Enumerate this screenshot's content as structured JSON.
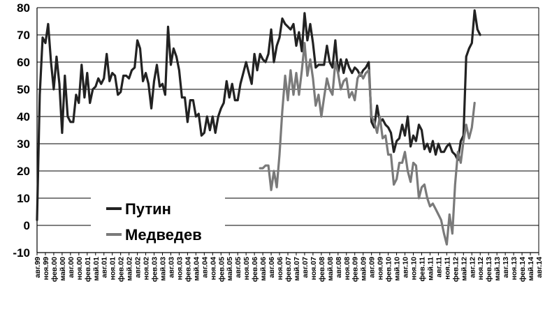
{
  "chart_data": {
    "type": "line",
    "title": "",
    "xlabel": "",
    "ylabel": "",
    "ylim": [
      -10,
      80
    ],
    "yticks": [
      "-10",
      "0",
      "10",
      "20",
      "30",
      "40",
      "50",
      "60",
      "70",
      "80"
    ],
    "grid": "horizontal",
    "legend_position": "lower-left",
    "x_tick_labels": [
      "авг.99",
      "ноя.99",
      "фев.00",
      "май.00",
      "авг.00",
      "ноя.00",
      "фев.01",
      "май.01",
      "авг.01",
      "ноя.01",
      "фев.02",
      "май.02",
      "авг.02",
      "ноя.02",
      "фев.03",
      "май.03",
      "авг.03",
      "ноя.03",
      "фев.04",
      "май.04",
      "авг.04",
      "ноя.04",
      "фев.05",
      "май.05",
      "авг.05",
      "ноя.05",
      "фев.06",
      "май.06",
      "авг.06",
      "ноя.06",
      "фев.07",
      "май.07",
      "авг.07",
      "ноя.07",
      "фев.08",
      "май.08",
      "авг.08",
      "ноя.08",
      "фев.09",
      "май.09",
      "авг.09",
      "ноя.09",
      "фев.10",
      "май.10",
      "авг.10",
      "ноя.10",
      "фев.11",
      "май.11",
      "авг.11",
      "ноя.11",
      "фев.12",
      "май.12",
      "авг.12",
      "ноя.12",
      "фев.13",
      "май.13",
      "авг.13",
      "ноя.13",
      "фев.14",
      "май.14",
      "авг.14"
    ],
    "series": [
      {
        "name": "Путин",
        "color": "#222222",
        "points": [
          [
            0,
            2
          ],
          [
            0.33,
            48
          ],
          [
            0.67,
            69
          ],
          [
            1,
            67
          ],
          [
            1.33,
            74
          ],
          [
            1.67,
            60
          ],
          [
            2,
            50
          ],
          [
            2.33,
            62
          ],
          [
            2.67,
            52
          ],
          [
            3,
            34
          ],
          [
            3.33,
            55
          ],
          [
            3.67,
            40
          ],
          [
            4,
            38
          ],
          [
            4.33,
            38
          ],
          [
            4.67,
            48
          ],
          [
            5,
            45
          ],
          [
            5.33,
            59
          ],
          [
            5.67,
            47
          ],
          [
            6,
            56
          ],
          [
            6.33,
            45
          ],
          [
            6.67,
            50
          ],
          [
            7,
            51
          ],
          [
            7.33,
            54
          ],
          [
            7.67,
            52
          ],
          [
            8,
            54
          ],
          [
            8.33,
            63
          ],
          [
            8.67,
            53
          ],
          [
            9,
            56
          ],
          [
            9.33,
            55
          ],
          [
            9.67,
            48
          ],
          [
            10,
            49
          ],
          [
            10.33,
            55
          ],
          [
            10.67,
            55
          ],
          [
            11,
            54
          ],
          [
            11.33,
            57
          ],
          [
            11.67,
            58
          ],
          [
            12,
            68
          ],
          [
            12.33,
            65
          ],
          [
            12.67,
            53
          ],
          [
            13,
            56
          ],
          [
            13.33,
            52
          ],
          [
            13.67,
            43
          ],
          [
            14,
            53
          ],
          [
            14.33,
            59
          ],
          [
            14.67,
            51
          ],
          [
            15,
            52
          ],
          [
            15.33,
            48
          ],
          [
            15.67,
            73
          ],
          [
            16,
            59
          ],
          [
            16.33,
            65
          ],
          [
            16.67,
            62
          ],
          [
            17,
            57
          ],
          [
            17.33,
            47
          ],
          [
            17.67,
            47
          ],
          [
            18,
            38
          ],
          [
            18.33,
            46
          ],
          [
            18.67,
            46
          ],
          [
            19,
            40
          ],
          [
            19.33,
            41
          ],
          [
            19.67,
            33
          ],
          [
            20,
            34
          ],
          [
            20.33,
            40
          ],
          [
            20.67,
            35
          ],
          [
            21,
            40
          ],
          [
            21.33,
            34
          ],
          [
            21.67,
            40
          ],
          [
            22,
            43
          ],
          [
            22.33,
            45
          ],
          [
            22.67,
            53
          ],
          [
            23,
            47
          ],
          [
            23.33,
            52
          ],
          [
            23.67,
            46
          ],
          [
            24,
            46
          ],
          [
            24.33,
            52
          ],
          [
            24.67,
            56
          ],
          [
            25,
            60
          ],
          [
            25.33,
            56
          ],
          [
            25.67,
            52
          ],
          [
            26,
            63
          ],
          [
            26.33,
            57
          ],
          [
            26.67,
            63
          ],
          [
            27,
            61
          ],
          [
            27.33,
            60
          ],
          [
            27.67,
            63
          ],
          [
            28,
            72
          ],
          [
            28.33,
            60
          ],
          [
            28.67,
            66
          ],
          [
            29,
            69
          ],
          [
            29.33,
            76
          ],
          [
            29.67,
            74
          ],
          [
            30,
            73
          ],
          [
            30.33,
            72
          ],
          [
            30.67,
            74
          ],
          [
            31,
            66
          ],
          [
            31.33,
            71
          ],
          [
            31.67,
            64
          ],
          [
            32,
            78
          ],
          [
            32.33,
            68
          ],
          [
            32.67,
            74
          ],
          [
            33,
            67
          ],
          [
            33.33,
            58
          ],
          [
            33.67,
            59
          ],
          [
            34,
            59
          ],
          [
            34.33,
            59
          ],
          [
            34.67,
            66
          ],
          [
            35,
            60
          ],
          [
            35.33,
            58
          ],
          [
            35.67,
            68
          ],
          [
            36,
            56
          ],
          [
            36.33,
            61
          ],
          [
            36.67,
            56
          ],
          [
            37,
            61
          ],
          [
            37.33,
            58
          ],
          [
            37.67,
            56
          ],
          [
            38,
            58
          ],
          [
            38.33,
            57
          ],
          [
            38.67,
            55
          ],
          [
            39,
            57
          ],
          [
            39.33,
            58
          ],
          [
            39.67,
            60
          ],
          [
            40,
            38
          ],
          [
            40.33,
            36
          ],
          [
            40.67,
            44
          ],
          [
            41,
            38
          ],
          [
            41.33,
            39
          ],
          [
            41.67,
            37
          ],
          [
            42,
            36
          ],
          [
            42.33,
            34
          ],
          [
            42.67,
            27
          ],
          [
            43,
            31
          ],
          [
            43.33,
            32
          ],
          [
            43.67,
            37
          ],
          [
            44,
            33
          ],
          [
            44.33,
            40
          ],
          [
            44.67,
            29
          ],
          [
            45,
            33
          ],
          [
            45.33,
            31
          ],
          [
            45.67,
            37
          ],
          [
            46,
            35
          ],
          [
            46.33,
            28
          ],
          [
            46.67,
            30
          ],
          [
            47,
            27
          ],
          [
            47.33,
            31
          ],
          [
            47.67,
            26
          ],
          [
            48,
            30
          ],
          [
            48.33,
            27
          ],
          [
            48.67,
            27
          ],
          [
            49,
            29
          ],
          [
            49.33,
            30
          ],
          [
            49.67,
            27
          ],
          [
            50,
            26
          ],
          [
            50.33,
            24
          ],
          [
            50.67,
            31
          ],
          [
            51,
            33
          ],
          [
            51.33,
            62
          ],
          [
            51.67,
            65
          ],
          [
            52,
            67
          ],
          [
            52.33,
            79
          ],
          [
            52.67,
            72
          ],
          [
            53,
            70
          ]
        ]
      },
      {
        "name": "Медведев",
        "color": "#7a7a7a",
        "points": [
          [
            26.67,
            21
          ],
          [
            27,
            21
          ],
          [
            27.33,
            22
          ],
          [
            27.67,
            22
          ],
          [
            28,
            13
          ],
          [
            28.33,
            20
          ],
          [
            28.67,
            14
          ],
          [
            29,
            26
          ],
          [
            29.33,
            42
          ],
          [
            29.67,
            55
          ],
          [
            30,
            46
          ],
          [
            30.33,
            57
          ],
          [
            30.67,
            48
          ],
          [
            31,
            56
          ],
          [
            31.33,
            48
          ],
          [
            31.67,
            57
          ],
          [
            32,
            67
          ],
          [
            32.33,
            55
          ],
          [
            32.67,
            61
          ],
          [
            33,
            54
          ],
          [
            33.33,
            44
          ],
          [
            33.67,
            48
          ],
          [
            34,
            40
          ],
          [
            34.33,
            47
          ],
          [
            34.67,
            54
          ],
          [
            35,
            50
          ],
          [
            35.33,
            48
          ],
          [
            35.67,
            60
          ],
          [
            36,
            56
          ],
          [
            36.33,
            50
          ],
          [
            36.67,
            53
          ],
          [
            37,
            54
          ],
          [
            37.33,
            47
          ],
          [
            37.67,
            49
          ],
          [
            38,
            46
          ],
          [
            38.33,
            54
          ],
          [
            38.67,
            56
          ],
          [
            39,
            54
          ],
          [
            39.33,
            56
          ],
          [
            39.67,
            57
          ],
          [
            40,
            40
          ],
          [
            40.33,
            38
          ],
          [
            40.67,
            34
          ],
          [
            41,
            40
          ],
          [
            41.33,
            32
          ],
          [
            41.67,
            33
          ],
          [
            42,
            26
          ],
          [
            42.33,
            26
          ],
          [
            42.67,
            15
          ],
          [
            43,
            17
          ],
          [
            43.33,
            23
          ],
          [
            43.67,
            23
          ],
          [
            44,
            27
          ],
          [
            44.33,
            20
          ],
          [
            44.67,
            16
          ],
          [
            45,
            23
          ],
          [
            45.33,
            22
          ],
          [
            45.67,
            10
          ],
          [
            46,
            14
          ],
          [
            46.33,
            15
          ],
          [
            46.67,
            10
          ],
          [
            47,
            7
          ],
          [
            47.33,
            8
          ],
          [
            47.67,
            6
          ],
          [
            48,
            4
          ],
          [
            48.33,
            2
          ],
          [
            48.67,
            -3
          ],
          [
            49,
            -7
          ],
          [
            49.33,
            4
          ],
          [
            49.67,
            -3
          ],
          [
            50,
            15
          ],
          [
            50.33,
            27
          ],
          [
            50.67,
            23
          ],
          [
            51,
            31
          ],
          [
            51.33,
            37
          ],
          [
            51.67,
            32
          ],
          [
            52,
            36
          ],
          [
            52.33,
            45
          ]
        ]
      }
    ]
  }
}
